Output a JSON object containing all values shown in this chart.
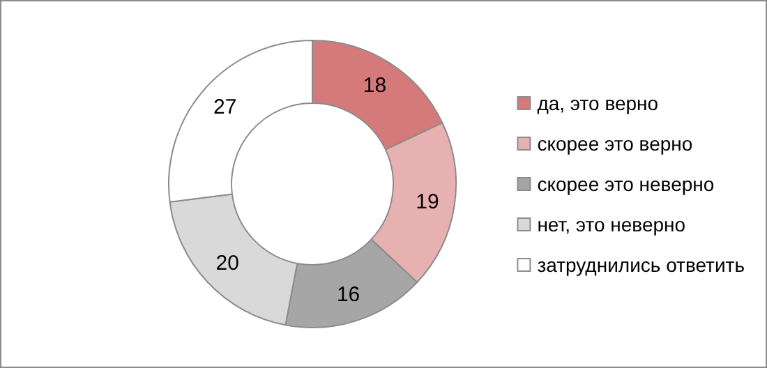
{
  "chart_data": {
    "type": "donut",
    "categories": [
      "да, это верно",
      "скорее это верно",
      "скорее это неверно",
      "нет, это неверно",
      "затруднились ответить"
    ],
    "values": [
      18,
      19,
      16,
      20,
      27
    ],
    "colors": [
      "#d47a7a",
      "#e8b1b1",
      "#a6a6a6",
      "#d9d9d9",
      "#ffffff"
    ],
    "data_labels": true,
    "legend": "right"
  }
}
